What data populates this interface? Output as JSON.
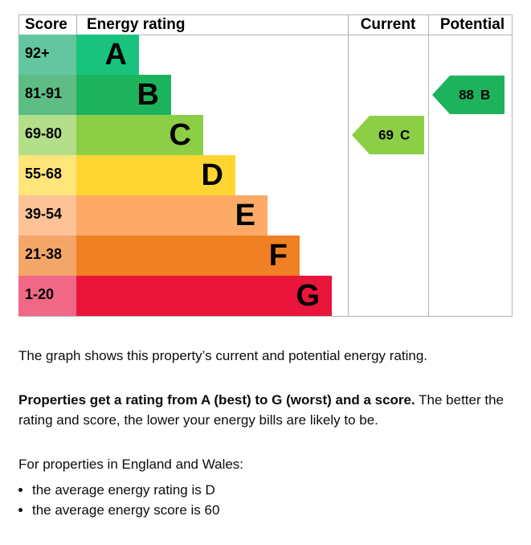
{
  "graph": {
    "headers": {
      "score": "Score",
      "rating": "Energy rating",
      "current": "Current",
      "potential": "Potential"
    },
    "rows": [
      {
        "score": "92+",
        "rating": "A",
        "color": "#19c37d",
        "score_color": "#64c6a0"
      },
      {
        "score": "81-91",
        "rating": "B",
        "color": "#1db35c",
        "score_color": "#5dbd85"
      },
      {
        "score": "69-80",
        "rating": "C",
        "color": "#8cce46",
        "score_color": "#b3de8a"
      },
      {
        "score": "55-68",
        "rating": "D",
        "color": "#ffd531",
        "score_color": "#ffe57a"
      },
      {
        "score": "39-54",
        "rating": "E",
        "color": "#fcaa65",
        "score_color": "#fdc397"
      },
      {
        "score": "21-38",
        "rating": "F",
        "color": "#ef8023",
        "score_color": "#f4a668"
      },
      {
        "score": "1-20",
        "rating": "G",
        "color": "#e9153b",
        "score_color": "#f06885"
      }
    ],
    "current": {
      "score": 69,
      "rating": "C"
    },
    "potential": {
      "score": 88,
      "rating": "B"
    }
  },
  "text": {
    "intro": "The graph shows this property’s current and potential energy rating.",
    "bold": "Properties get a rating from A (best) to G (worst) and a score.",
    "rest": "The better the rating and score, the lower your energy bills are likely to be.",
    "region": "For properties in England and Wales:",
    "bullets": [
      "the average energy rating is D",
      "the average energy score is 60"
    ]
  }
}
